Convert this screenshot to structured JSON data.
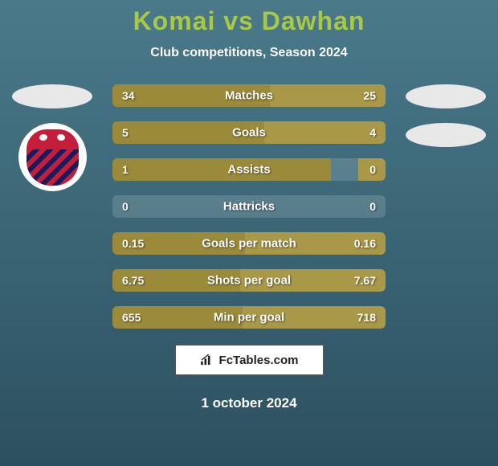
{
  "header": {
    "title": "Komai vs Dawhan",
    "subtitle": "Club competitions, Season 2024",
    "title_color": "#a8c947",
    "subtitle_color": "#ffffff"
  },
  "background": {
    "gradient_top": "#4a7a8a",
    "gradient_mid": "#3a6575",
    "gradient_bottom": "#2d5060"
  },
  "stats": [
    {
      "label": "Matches",
      "left_value": "34",
      "right_value": "25",
      "left_width_pct": 57.6,
      "right_width_pct": 42.4
    },
    {
      "label": "Goals",
      "left_value": "5",
      "right_value": "4",
      "left_width_pct": 55.6,
      "right_width_pct": 44.4
    },
    {
      "label": "Assists",
      "left_value": "1",
      "right_value": "0",
      "left_width_pct": 80,
      "right_width_pct": 10
    },
    {
      "label": "Hattricks",
      "left_value": "0",
      "right_value": "0",
      "left_width_pct": 0,
      "right_width_pct": 0
    },
    {
      "label": "Goals per match",
      "left_value": "0.15",
      "right_value": "0.16",
      "left_width_pct": 48.4,
      "right_width_pct": 51.6
    },
    {
      "label": "Shots per goal",
      "left_value": "6.75",
      "right_value": "7.67",
      "left_width_pct": 46.8,
      "right_width_pct": 53.2
    },
    {
      "label": "Min per goal",
      "left_value": "655",
      "right_value": "718",
      "left_width_pct": 47.7,
      "right_width_pct": 52.3
    }
  ],
  "bar_colors": {
    "left_bar": "#9a8a3a",
    "right_bar": "#a89848",
    "track": "rgba(255,255,255,0.15)"
  },
  "footer": {
    "brand": "FcTables.com",
    "date": "1 october 2024"
  }
}
